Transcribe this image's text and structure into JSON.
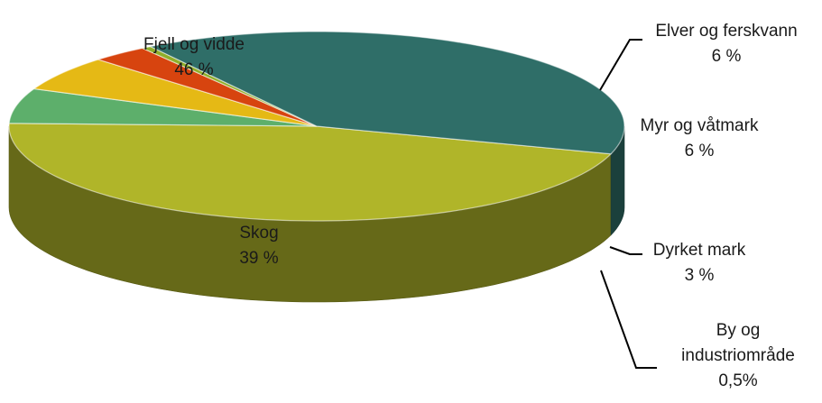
{
  "chart_data": {
    "type": "pie",
    "style": "3d",
    "title": "",
    "unit": "%",
    "slices": [
      {
        "label": "Fjell og vidde",
        "value": 46,
        "value_label": "46 %",
        "color": "#b0b529"
      },
      {
        "label": "Elver og ferskvann",
        "value": 6,
        "value_label": "6 %",
        "color": "#5daf6b"
      },
      {
        "label": "Myr og våtmark",
        "value": 6,
        "value_label": "6 %",
        "color": "#e5b915"
      },
      {
        "label": "Dyrket mark",
        "value": 3,
        "value_label": "3 %",
        "color": "#d7440f"
      },
      {
        "label": "By og industriområde",
        "value_label": "0,5%",
        "value": 0.5,
        "label_lines": [
          "By og",
          "industriområde"
        ],
        "color": "#8fae2a"
      },
      {
        "label": "Skog",
        "value": 39,
        "value_label": "39 %",
        "color": "#2f6e68"
      }
    ]
  }
}
